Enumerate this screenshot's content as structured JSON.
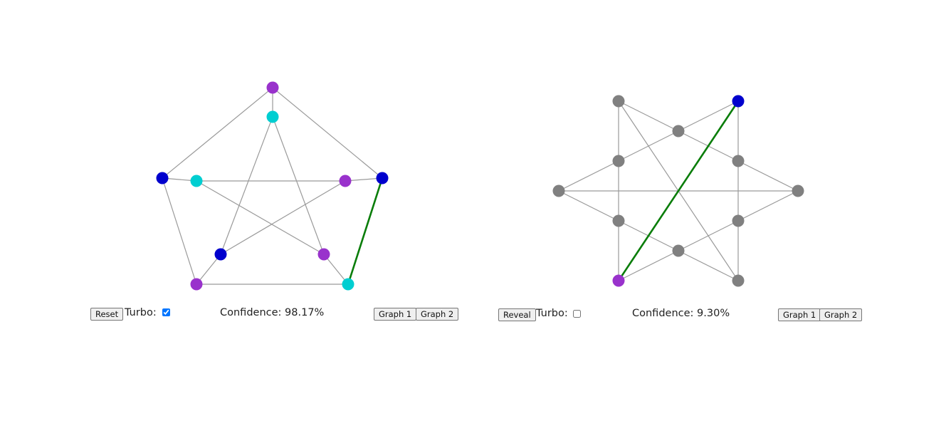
{
  "colors": {
    "purple": "#9932cc",
    "cyan": "#00ced1",
    "blue": "#0000cd",
    "gray": "#808080",
    "edge": "#9a9a9a",
    "highlight_edge": "#0a7d0a"
  },
  "left_panel": {
    "reset_label": "Reset",
    "turbo_label": "Turbo:",
    "turbo_checked": true,
    "confidence_label": "Confidence:",
    "confidence_value": "98.17%",
    "graph1_label": "Graph 1",
    "graph2_label": "Graph 2",
    "vertex_colors": [
      "purple",
      "cyan",
      "blue",
      "cyan",
      "purple",
      "blue",
      "purple",
      "blue",
      "cyan",
      "purple"
    ],
    "highlighted_edge": "blue-to-cyan on the outer right side"
  },
  "right_panel": {
    "reveal_label": "Reveal",
    "turbo_label": "Turbo:",
    "turbo_checked": false,
    "confidence_label": "Confidence:",
    "confidence_value": "9.30%",
    "graph1_label": "Graph 1",
    "graph2_label": "Graph 2",
    "vertex_colors": [
      "gray",
      "blue",
      "gray",
      "gray",
      "gray",
      "gray",
      "gray",
      "gray",
      "gray",
      "purple",
      "gray",
      "gray"
    ],
    "highlighted_edge": "purple-to-blue diagonal"
  }
}
